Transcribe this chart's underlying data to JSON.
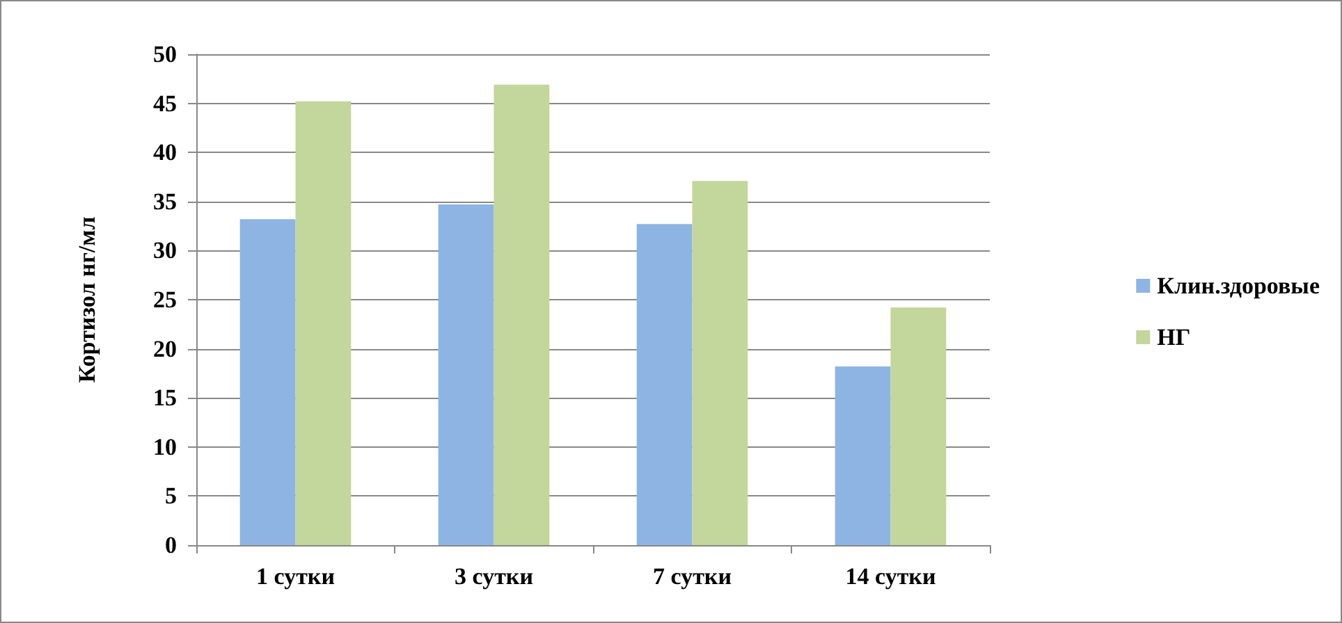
{
  "chart_data": {
    "type": "bar",
    "ylabel": "Кортизол нг/мл",
    "categories": [
      "1 сутки",
      "3 сутки",
      "7 сутки",
      "14 сутки"
    ],
    "series": [
      {
        "name": "Клин.здоровые",
        "color": "#8eb4e3",
        "values": [
          33.2,
          34.7,
          32.7,
          18.2
        ]
      },
      {
        "name": "НГ",
        "color": "#c3d69b",
        "values": [
          45.2,
          46.9,
          37.1,
          24.2
        ]
      }
    ],
    "ylim": [
      0,
      50
    ],
    "yticks": [
      0,
      5,
      10,
      15,
      20,
      25,
      30,
      35,
      40,
      45,
      50
    ],
    "grid": "y",
    "legend": "right"
  }
}
